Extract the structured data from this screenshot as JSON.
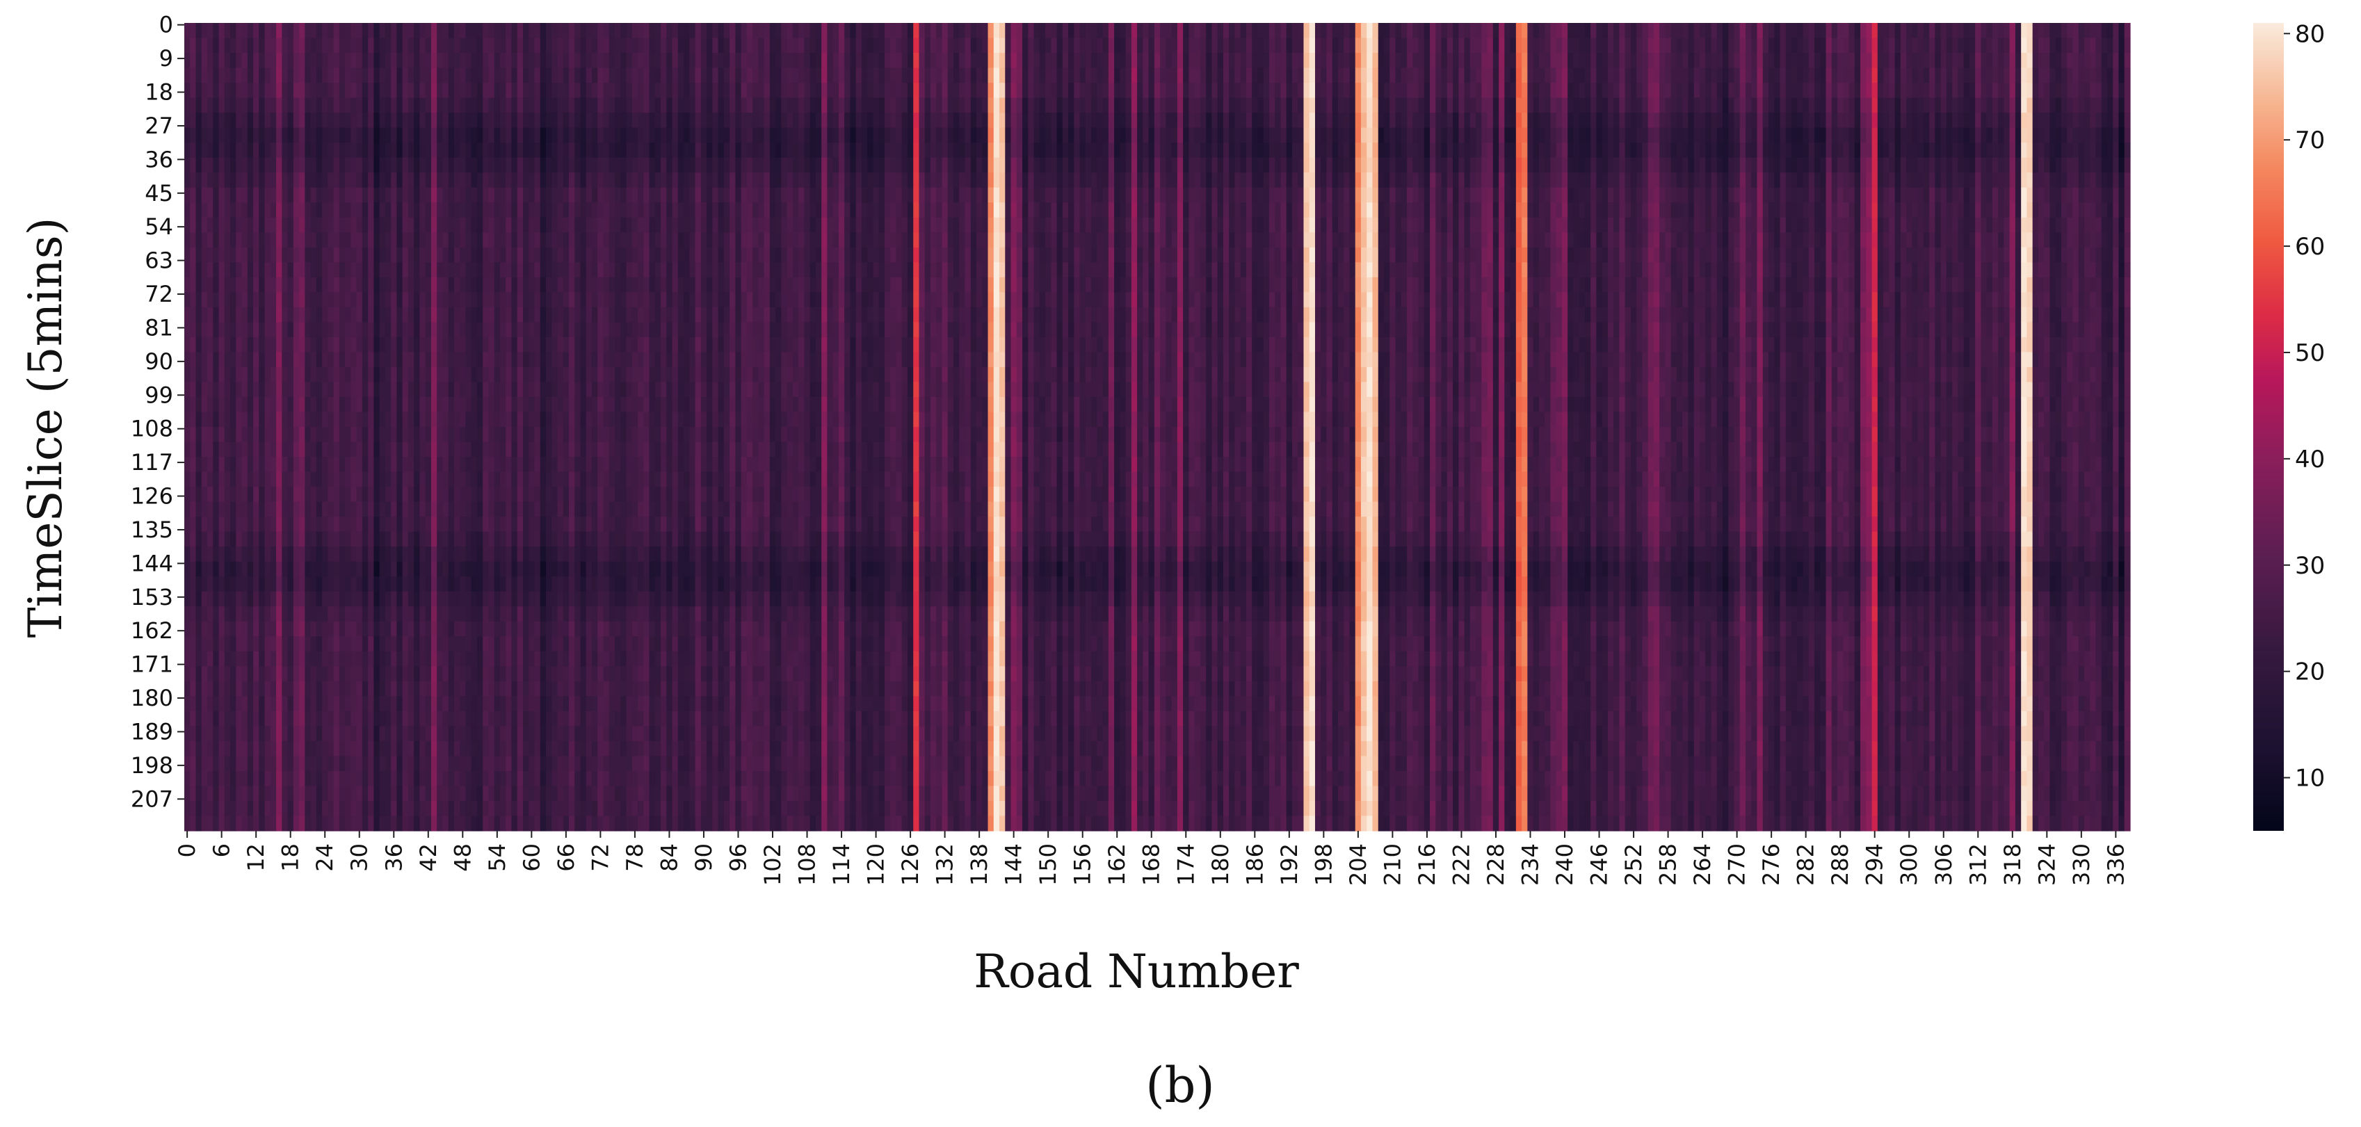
{
  "chart_data": {
    "type": "heatmap",
    "xlabel": "Road Number",
    "ylabel": "TimeSlice (5mins)",
    "panel_label": "(b)",
    "n_roads": 339,
    "n_timeslices": 216,
    "x_ticks": [
      0,
      6,
      12,
      18,
      24,
      30,
      36,
      42,
      48,
      54,
      60,
      66,
      72,
      78,
      84,
      90,
      96,
      102,
      108,
      114,
      120,
      126,
      132,
      138,
      144,
      150,
      156,
      162,
      168,
      174,
      180,
      186,
      192,
      198,
      204,
      210,
      216,
      222,
      228,
      234,
      240,
      246,
      252,
      258,
      264,
      270,
      276,
      282,
      288,
      294,
      300,
      306,
      312,
      318,
      324,
      330,
      336
    ],
    "y_ticks": [
      0,
      9,
      18,
      27,
      36,
      45,
      54,
      63,
      72,
      81,
      90,
      99,
      108,
      117,
      126,
      135,
      144,
      153,
      162,
      171,
      180,
      189,
      198,
      207
    ],
    "colorbar": {
      "range": [
        5,
        81
      ],
      "ticks": [
        10,
        20,
        30,
        40,
        50,
        60,
        70,
        80
      ],
      "colormap": "rocket",
      "colors": [
        "#03051a",
        "#35193e",
        "#701f57",
        "#ad1759",
        "#e13342",
        "#f37651",
        "#f6b48f",
        "#faebdd"
      ]
    },
    "road_profile_note_free": true,
    "bright_roads": [
      {
        "road": 127,
        "value": 55
      },
      {
        "road": 140,
        "value": 68
      },
      {
        "road": 141,
        "value": 80
      },
      {
        "road": 142,
        "value": 76
      },
      {
        "road": 195,
        "value": 76
      },
      {
        "road": 196,
        "value": 80
      },
      {
        "road": 204,
        "value": 68
      },
      {
        "road": 205,
        "value": 76
      },
      {
        "road": 206,
        "value": 80
      },
      {
        "road": 207,
        "value": 74
      },
      {
        "road": 232,
        "value": 62
      },
      {
        "road": 233,
        "value": 66
      },
      {
        "road": 294,
        "value": 52
      },
      {
        "road": 320,
        "value": 80
      },
      {
        "road": 321,
        "value": 78
      }
    ],
    "low_speed_periods": [
      {
        "from_slice": 18,
        "to_slice": 42,
        "value": 12
      },
      {
        "from_slice": 135,
        "to_slice": 156,
        "value": 12
      }
    ]
  }
}
